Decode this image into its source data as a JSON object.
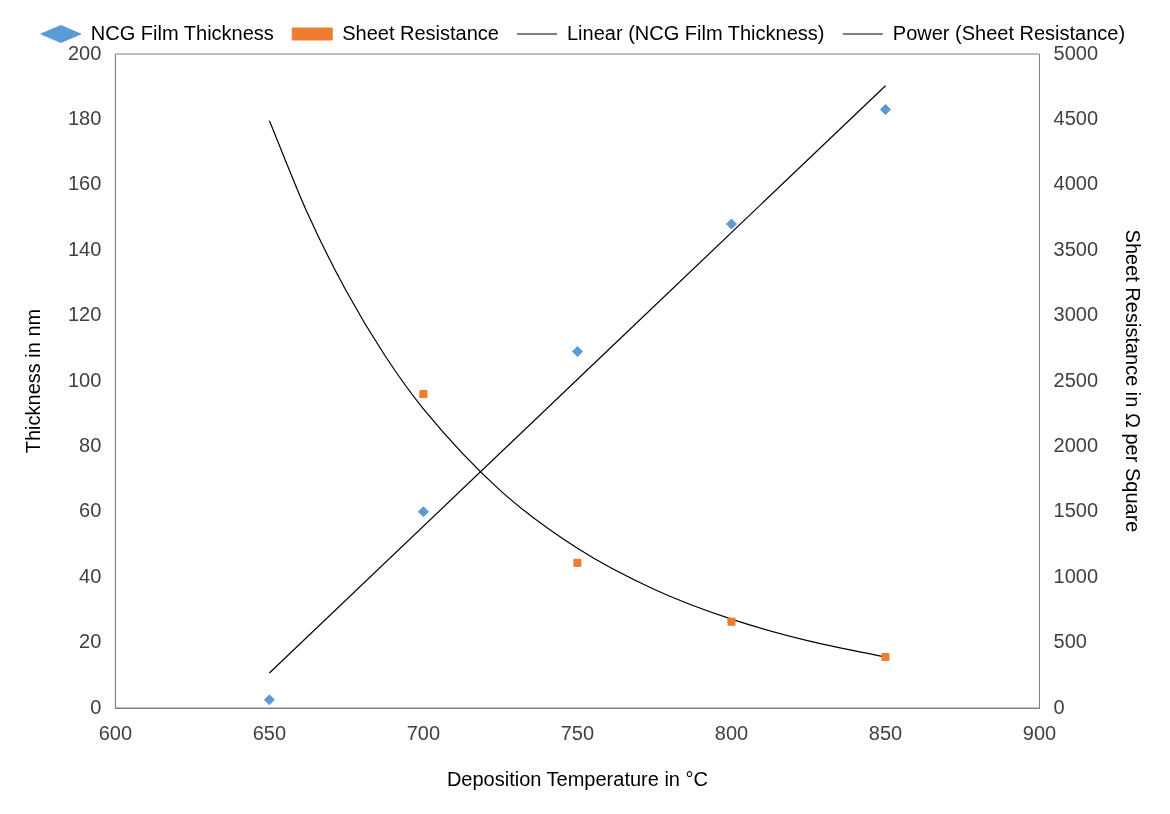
{
  "chart_data": {
    "type": "scatter",
    "xlabel": "Deposition Temperature in °C",
    "ylabel": "Thickness in nm",
    "y2label": "Sheet Resistance in Ω per Square",
    "xlim": [
      600,
      900
    ],
    "xticks": [
      600,
      650,
      700,
      750,
      800,
      850,
      900
    ],
    "ylim": [
      0,
      200
    ],
    "yticks": [
      0,
      20,
      40,
      60,
      80,
      100,
      120,
      140,
      160,
      180,
      200
    ],
    "y2lim": [
      0,
      5000
    ],
    "y2ticks": [
      0,
      500,
      1000,
      1500,
      2000,
      2500,
      3000,
      3500,
      4000,
      4500,
      5000
    ],
    "grid": false,
    "legend": "top",
    "series": [
      {
        "name": "NCG Film Thickness",
        "type": "scatter",
        "marker": "diamond",
        "color": "#5b9bd5",
        "x": [
          650,
          700,
          750,
          800,
          850
        ],
        "values": [
          2.5,
          60,
          109,
          148,
          183
        ]
      },
      {
        "name": "Sheet Resistance",
        "type": "scatter",
        "marker": "square",
        "axis": "y2",
        "color": "#ed7d31",
        "x": [
          700,
          750,
          800,
          850
        ],
        "values": [
          2400,
          1110,
          660,
          390
        ]
      },
      {
        "name": "Linear (NCG Film Thickness)",
        "type": "line",
        "marker": "none",
        "line_style": "solid",
        "color": "#000000",
        "x": [
          650,
          850
        ],
        "values": [
          10.7,
          190.3
        ]
      },
      {
        "name": "Power (Sheet Resistance)",
        "type": "line",
        "marker": "none",
        "line_style": "solid",
        "axis": "y2",
        "color": "#000000",
        "x": [
          650,
          662.5,
          675,
          687.5,
          700,
          725,
          750,
          775,
          800,
          825,
          850
        ],
        "values": [
          4490,
          3776,
          3186,
          2695,
          2287,
          1662,
          1221,
          906,
          679,
          513,
          390
        ]
      }
    ]
  }
}
